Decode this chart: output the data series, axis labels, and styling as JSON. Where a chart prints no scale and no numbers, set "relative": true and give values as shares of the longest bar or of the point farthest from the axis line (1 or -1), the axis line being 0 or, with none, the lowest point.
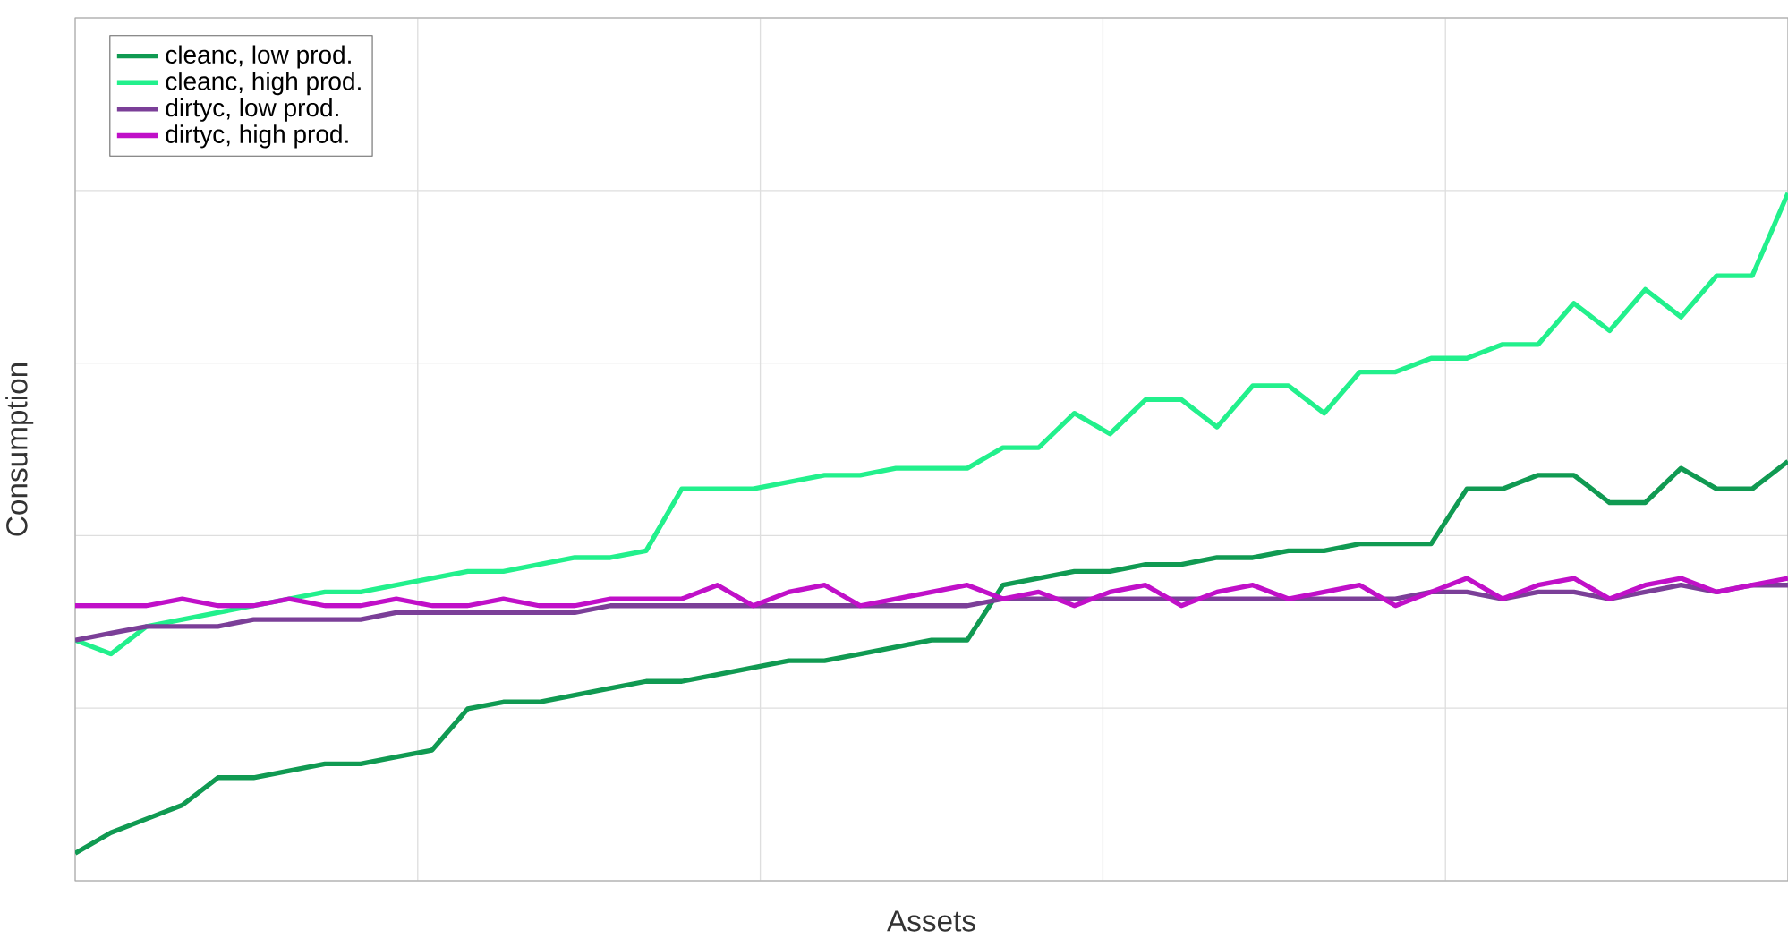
{
  "chart_data": {
    "type": "line",
    "xlabel": "Assets",
    "ylabel": "Consumption",
    "relative": true,
    "grid": true,
    "legend": "top left",
    "categories": [
      null,
      null,
      null,
      null,
      null,
      null,
      null,
      null,
      null,
      null,
      null,
      null,
      null,
      null,
      null,
      null,
      null,
      null,
      null,
      null,
      null,
      null,
      null,
      null,
      null,
      null,
      null,
      null,
      null,
      null,
      null,
      null,
      null,
      null,
      null,
      null,
      null,
      null,
      null,
      null,
      null,
      null,
      null,
      null,
      null,
      null,
      null,
      null,
      null
    ],
    "series": [
      {
        "name": "cleanc, low prod.",
        "color": "#109a52",
        "values": [
          0.04,
          0.07,
          0.09,
          0.11,
          0.15,
          0.15,
          0.16,
          0.17,
          0.17,
          0.18,
          0.19,
          0.25,
          0.26,
          0.26,
          0.27,
          0.28,
          0.29,
          0.29,
          0.3,
          0.31,
          0.32,
          0.32,
          0.33,
          0.34,
          0.35,
          0.35,
          0.43,
          0.44,
          0.45,
          0.45,
          0.46,
          0.46,
          0.47,
          0.47,
          0.48,
          0.48,
          0.49,
          0.49,
          0.49,
          0.57,
          0.57,
          0.59,
          0.59,
          0.55,
          0.55,
          0.6,
          0.57,
          0.57,
          0.61
        ]
      },
      {
        "name": "cleanc, high prod.",
        "color": "#22f08c",
        "values": [
          0.35,
          0.33,
          0.37,
          0.38,
          0.39,
          0.4,
          0.41,
          0.42,
          0.42,
          0.43,
          0.44,
          0.45,
          0.45,
          0.46,
          0.47,
          0.47,
          0.48,
          0.57,
          0.57,
          0.57,
          0.58,
          0.59,
          0.59,
          0.6,
          0.6,
          0.6,
          0.63,
          0.63,
          0.68,
          0.65,
          0.7,
          0.7,
          0.66,
          0.72,
          0.72,
          0.68,
          0.74,
          0.74,
          0.76,
          0.76,
          0.78,
          0.78,
          0.84,
          0.8,
          0.86,
          0.82,
          0.88,
          0.88,
          1.0
        ]
      },
      {
        "name": "dirtyc, low prod.",
        "color": "#7b3f98",
        "values": [
          0.35,
          0.36,
          0.37,
          0.37,
          0.37,
          0.38,
          0.38,
          0.38,
          0.38,
          0.39,
          0.39,
          0.39,
          0.39,
          0.39,
          0.39,
          0.4,
          0.4,
          0.4,
          0.4,
          0.4,
          0.4,
          0.4,
          0.4,
          0.4,
          0.4,
          0.4,
          0.41,
          0.41,
          0.41,
          0.41,
          0.41,
          0.41,
          0.41,
          0.41,
          0.41,
          0.41,
          0.41,
          0.41,
          0.42,
          0.42,
          0.41,
          0.42,
          0.42,
          0.41,
          0.42,
          0.43,
          0.42,
          0.43,
          0.43
        ]
      },
      {
        "name": "dirtyc, high prod.",
        "color": "#c010c8",
        "values": [
          0.4,
          0.4,
          0.4,
          0.41,
          0.4,
          0.4,
          0.41,
          0.4,
          0.4,
          0.41,
          0.4,
          0.4,
          0.41,
          0.4,
          0.4,
          0.41,
          0.41,
          0.41,
          0.43,
          0.4,
          0.42,
          0.43,
          0.4,
          0.41,
          0.42,
          0.43,
          0.41,
          0.42,
          0.4,
          0.42,
          0.43,
          0.4,
          0.42,
          0.43,
          0.41,
          0.42,
          0.43,
          0.4,
          0.42,
          0.44,
          0.41,
          0.43,
          0.44,
          0.41,
          0.43,
          0.44,
          0.42,
          0.43,
          0.44
        ]
      }
    ]
  }
}
